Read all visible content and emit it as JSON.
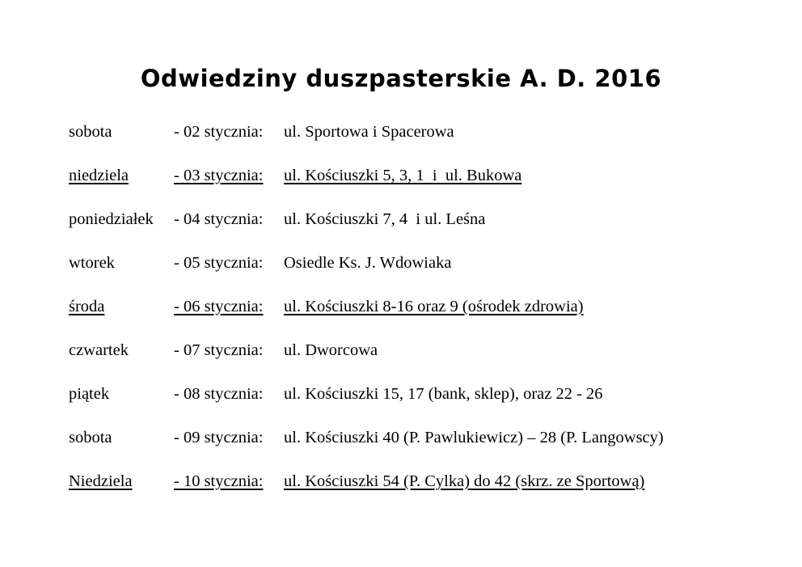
{
  "title": "Odwiedziny duszpasterskie A. D. 2016",
  "rows": [
    {
      "day": "sobota",
      "date": "- 02 stycznia:",
      "location": "ul. Sportowa i Spacerowa",
      "underlined": false
    },
    {
      "day": "niedziela",
      "date": "- 03 stycznia:",
      "location": "ul. Kościuszki 5, 3, 1  i  ul. Bukowa",
      "underlined": true
    },
    {
      "day": "poniedziałek",
      "date": "- 04 stycznia:",
      "location": "ul. Kościuszki 7, 4  i ul. Leśna",
      "underlined": false
    },
    {
      "day": "wtorek",
      "date": "- 05 stycznia:",
      "location": "Osiedle Ks. J. Wdowiaka",
      "underlined": false
    },
    {
      "day": "środa",
      "date": "- 06 stycznia:",
      "location": "ul. Kościuszki 8-16 oraz 9 (ośrodek zdrowia)",
      "underlined": true
    },
    {
      "day": "czwartek",
      "date": "- 07 stycznia:",
      "location": "ul. Dworcowa",
      "underlined": false
    },
    {
      "day": "piątek",
      "date": "- 08 stycznia:",
      "location": "ul. Kościuszki 15, 17 (bank, sklep), oraz 22 - 26",
      "underlined": false
    },
    {
      "day": "sobota",
      "date": "- 09 stycznia:",
      "location": "ul. Kościuszki 40 (P. Pawlukiewicz) – 28 (P. Langowscy)",
      "underlined": false
    },
    {
      "day": "Niedziela",
      "date": "- 10 stycznia:",
      "location": "ul. Kościuszki 54 (P. Cylka) do 42 (skrz. ze Sportową)",
      "underlined": true
    }
  ]
}
